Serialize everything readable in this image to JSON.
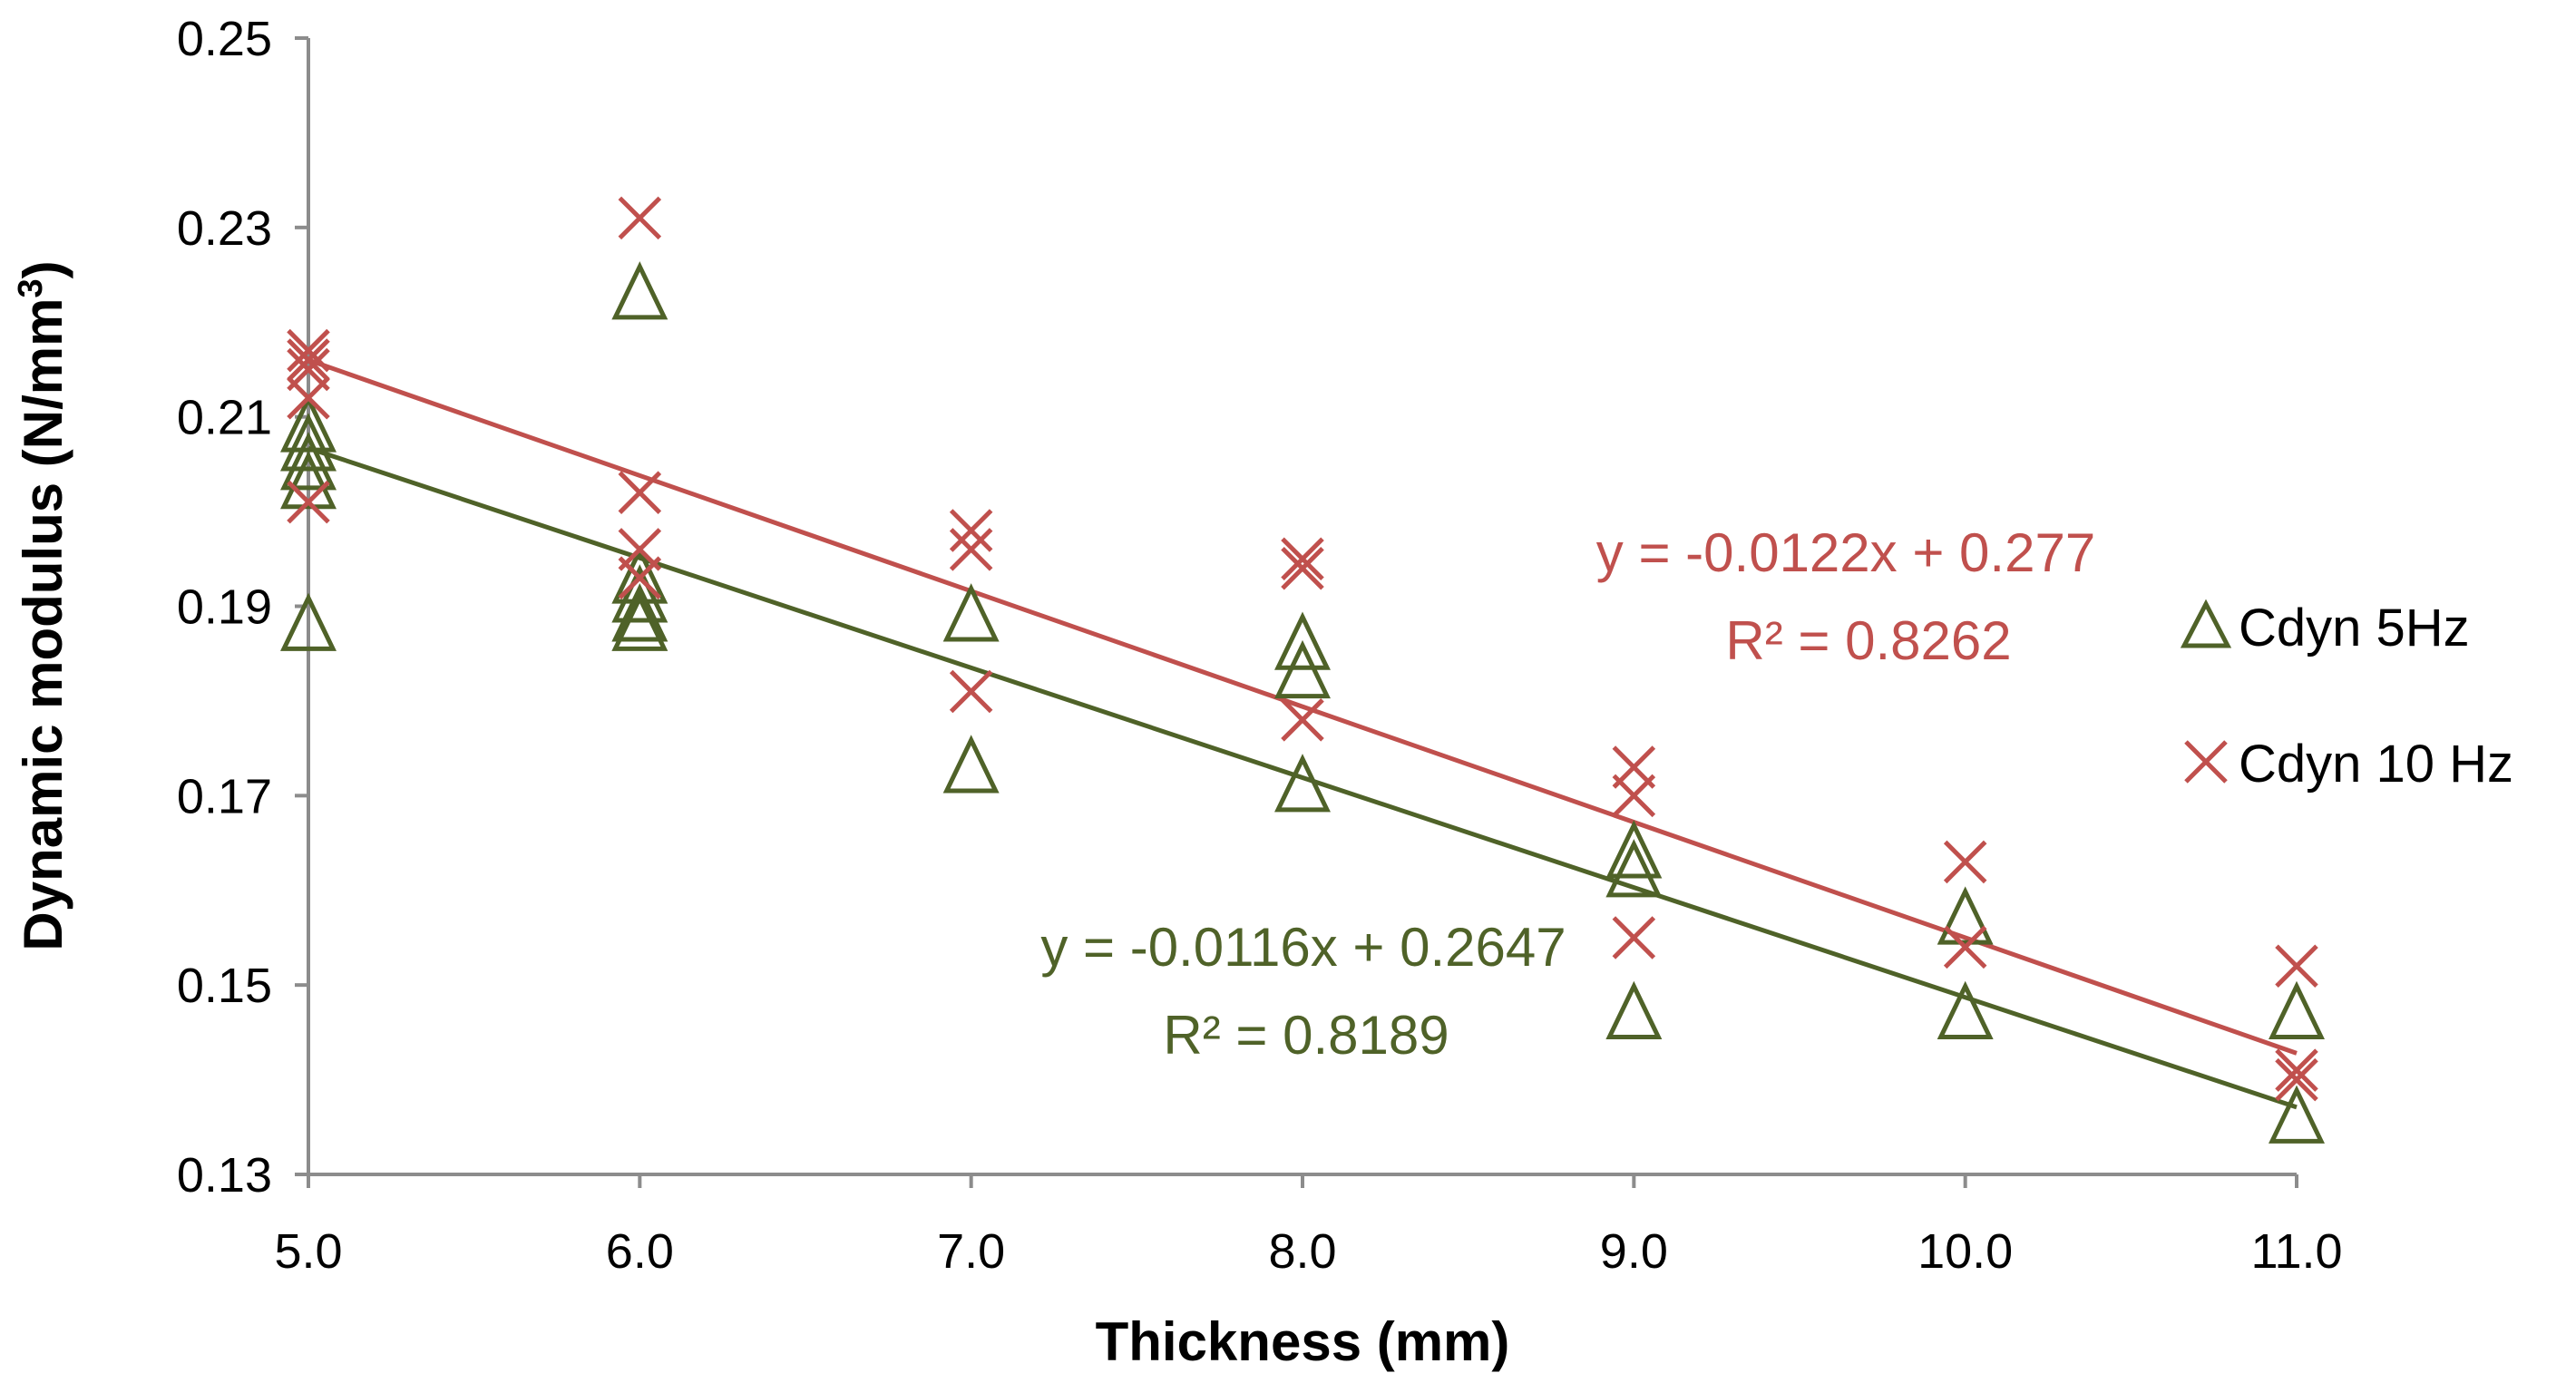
{
  "chart_data": {
    "type": "scatter",
    "title": "",
    "xlabel": "Thickness (mm)",
    "ylabel_main": "Dynamic modulus (N/mm",
    "ylabel_sup": "3",
    "ylabel_end": ")",
    "xlim": [
      5.0,
      11.0
    ],
    "ylim": [
      0.13,
      0.25
    ],
    "x_ticks": [
      5.0,
      6.0,
      7.0,
      8.0,
      9.0,
      10.0,
      11.0
    ],
    "x_tick_labels": [
      "5.0",
      "6.0",
      "7.0",
      "8.0",
      "9.0",
      "10.0",
      "11.0"
    ],
    "y_ticks": [
      0.13,
      0.15,
      0.17,
      0.19,
      0.21,
      0.23,
      0.25
    ],
    "y_tick_labels": [
      "0.13",
      "0.15",
      "0.17",
      "0.19",
      "0.21",
      "0.23",
      "0.25"
    ],
    "legend_position": "right",
    "series": [
      {
        "name": "Cdyn 5Hz",
        "marker": "triangle-open",
        "color": "#4F6228",
        "trendline": {
          "slope": -0.0116,
          "intercept": 0.2647
        },
        "equation_label": "y = -0.0116x + 0.2647",
        "r2_label": "R² = 0.8189",
        "points": [
          [
            5.0,
            0.209
          ],
          [
            5.0,
            0.207
          ],
          [
            5.0,
            0.205
          ],
          [
            5.0,
            0.203
          ],
          [
            5.0,
            0.188
          ],
          [
            6.0,
            0.223
          ],
          [
            6.0,
            0.193
          ],
          [
            6.0,
            0.191
          ],
          [
            6.0,
            0.189
          ],
          [
            6.0,
            0.188
          ],
          [
            7.0,
            0.189
          ],
          [
            7.0,
            0.173
          ],
          [
            8.0,
            0.186
          ],
          [
            8.0,
            0.183
          ],
          [
            8.0,
            0.171
          ],
          [
            9.0,
            0.164
          ],
          [
            9.0,
            0.162
          ],
          [
            9.0,
            0.147
          ],
          [
            10.0,
            0.157
          ],
          [
            10.0,
            0.147
          ],
          [
            11.0,
            0.147
          ],
          [
            11.0,
            0.136
          ]
        ]
      },
      {
        "name": "Cdyn 10 Hz",
        "marker": "x",
        "color": "#C0504D",
        "trendline": {
          "slope": -0.0122,
          "intercept": 0.277
        },
        "equation_label": "y = -0.0122x + 0.277",
        "r2_label": "R² = 0.8262",
        "points": [
          [
            5.0,
            0.217
          ],
          [
            5.0,
            0.216
          ],
          [
            5.0,
            0.215
          ],
          [
            5.0,
            0.212
          ],
          [
            5.0,
            0.201
          ],
          [
            6.0,
            0.231
          ],
          [
            6.0,
            0.202
          ],
          [
            6.0,
            0.196
          ],
          [
            6.0,
            0.193
          ],
          [
            7.0,
            0.198
          ],
          [
            7.0,
            0.196
          ],
          [
            7.0,
            0.181
          ],
          [
            8.0,
            0.195
          ],
          [
            8.0,
            0.194
          ],
          [
            8.0,
            0.178
          ],
          [
            9.0,
            0.173
          ],
          [
            9.0,
            0.17
          ],
          [
            9.0,
            0.155
          ],
          [
            10.0,
            0.163
          ],
          [
            10.0,
            0.154
          ],
          [
            11.0,
            0.152
          ],
          [
            11.0,
            0.141
          ],
          [
            11.0,
            0.14
          ]
        ]
      }
    ]
  }
}
